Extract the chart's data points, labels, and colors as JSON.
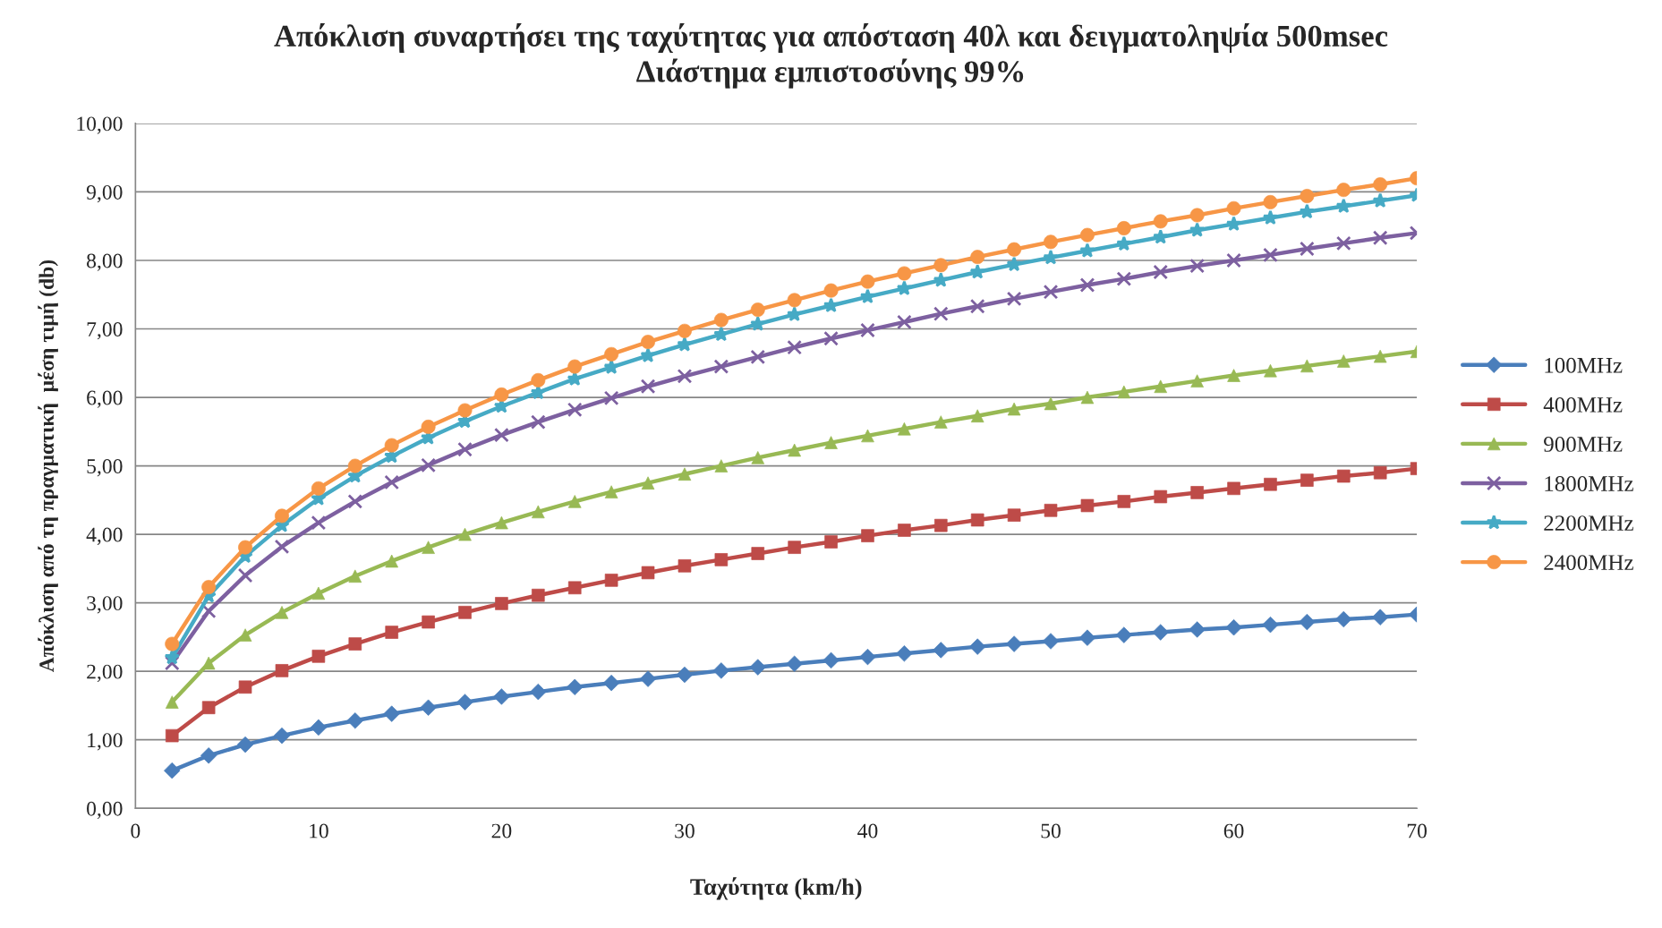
{
  "chart_data": {
    "type": "line",
    "title": "Απόκλιση συναρτήσει της ταχύτητας για απόσταση 40λ και δειγματοληψία 500msec\nΔιάστημα εμπιστοσύνης 99%",
    "xlabel": "Ταχύτητα (km/h)",
    "ylabel": "Απόκλιση από τη πραγματική  μέση τιμή (db)",
    "x": [
      2,
      4,
      6,
      8,
      10,
      12,
      14,
      16,
      18,
      20,
      22,
      24,
      26,
      28,
      30,
      32,
      34,
      36,
      38,
      40,
      42,
      44,
      46,
      48,
      50,
      52,
      54,
      56,
      58,
      60,
      62,
      64,
      66,
      68,
      70
    ],
    "series": [
      {
        "name": "100MHz",
        "color": "#4a7ebb",
        "marker": "diamond",
        "values": [
          0.55,
          0.77,
          0.93,
          1.06,
          1.18,
          1.28,
          1.38,
          1.47,
          1.55,
          1.63,
          1.7,
          1.77,
          1.83,
          1.89,
          1.95,
          2.01,
          2.06,
          2.11,
          2.16,
          2.21,
          2.26,
          2.31,
          2.36,
          2.4,
          2.44,
          2.49,
          2.53,
          2.57,
          2.61,
          2.64,
          2.68,
          2.72,
          2.76,
          2.79,
          2.83
        ]
      },
      {
        "name": "400MHz",
        "color": "#be4b48",
        "marker": "square",
        "values": [
          1.06,
          1.47,
          1.77,
          2.01,
          2.22,
          2.4,
          2.57,
          2.72,
          2.86,
          2.99,
          3.11,
          3.22,
          3.33,
          3.44,
          3.54,
          3.63,
          3.72,
          3.81,
          3.89,
          3.98,
          4.06,
          4.13,
          4.21,
          4.28,
          4.35,
          4.42,
          4.48,
          4.55,
          4.61,
          4.67,
          4.73,
          4.79,
          4.85,
          4.9,
          4.96
        ]
      },
      {
        "name": "900MHz",
        "color": "#98b954",
        "marker": "triangle",
        "values": [
          1.55,
          2.12,
          2.53,
          2.86,
          3.14,
          3.39,
          3.61,
          3.81,
          4.0,
          4.17,
          4.33,
          4.48,
          4.62,
          4.75,
          4.88,
          5.0,
          5.12,
          5.23,
          5.34,
          5.44,
          5.54,
          5.64,
          5.73,
          5.83,
          5.91,
          6.0,
          6.08,
          6.16,
          6.24,
          6.32,
          6.39,
          6.46,
          6.53,
          6.6,
          6.67
        ]
      },
      {
        "name": "1800MHz",
        "color": "#7d60a0",
        "marker": "cross",
        "values": [
          2.12,
          2.88,
          3.4,
          3.82,
          4.17,
          4.48,
          4.76,
          5.01,
          5.24,
          5.45,
          5.64,
          5.82,
          5.99,
          6.16,
          6.31,
          6.45,
          6.59,
          6.73,
          6.86,
          6.98,
          7.1,
          7.22,
          7.33,
          7.44,
          7.54,
          7.64,
          7.73,
          7.83,
          7.92,
          8.0,
          8.08,
          8.17,
          8.25,
          8.33,
          8.4
        ]
      },
      {
        "name": "2200MHz",
        "color": "#46aac5",
        "marker": "star",
        "values": [
          2.2,
          3.1,
          3.68,
          4.13,
          4.52,
          4.85,
          5.14,
          5.41,
          5.65,
          5.87,
          6.07,
          6.27,
          6.44,
          6.61,
          6.77,
          6.92,
          7.07,
          7.21,
          7.34,
          7.47,
          7.59,
          7.71,
          7.83,
          7.94,
          8.04,
          8.14,
          8.24,
          8.34,
          8.44,
          8.53,
          8.62,
          8.71,
          8.79,
          8.87,
          8.95
        ]
      },
      {
        "name": "2400MHz",
        "color": "#f79646",
        "marker": "circle",
        "values": [
          2.4,
          3.23,
          3.81,
          4.27,
          4.67,
          5.0,
          5.3,
          5.57,
          5.81,
          6.04,
          6.25,
          6.45,
          6.63,
          6.81,
          6.97,
          7.13,
          7.28,
          7.42,
          7.56,
          7.69,
          7.81,
          7.93,
          8.05,
          8.16,
          8.27,
          8.37,
          8.47,
          8.57,
          8.66,
          8.76,
          8.85,
          8.94,
          9.03,
          9.11,
          9.2
        ]
      }
    ],
    "xlim": [
      0,
      70
    ],
    "xticks": [
      0,
      10,
      20,
      30,
      40,
      50,
      60,
      70
    ],
    "ylim": [
      0,
      10
    ],
    "yticks": [
      {
        "value": 0,
        "label": "0,00"
      },
      {
        "value": 1,
        "label": "1,00"
      },
      {
        "value": 2,
        "label": "2,00"
      },
      {
        "value": 3,
        "label": "3,00"
      },
      {
        "value": 4,
        "label": "4,00"
      },
      {
        "value": 5,
        "label": "5,00"
      },
      {
        "value": 6,
        "label": "6,00"
      },
      {
        "value": 7,
        "label": "7,00"
      },
      {
        "value": 8,
        "label": "8,00"
      },
      {
        "value": 9,
        "label": "9,00"
      },
      {
        "value": 10,
        "label": "10,00"
      }
    ],
    "grid": "y",
    "legend": "right",
    "line_style": "solid"
  }
}
